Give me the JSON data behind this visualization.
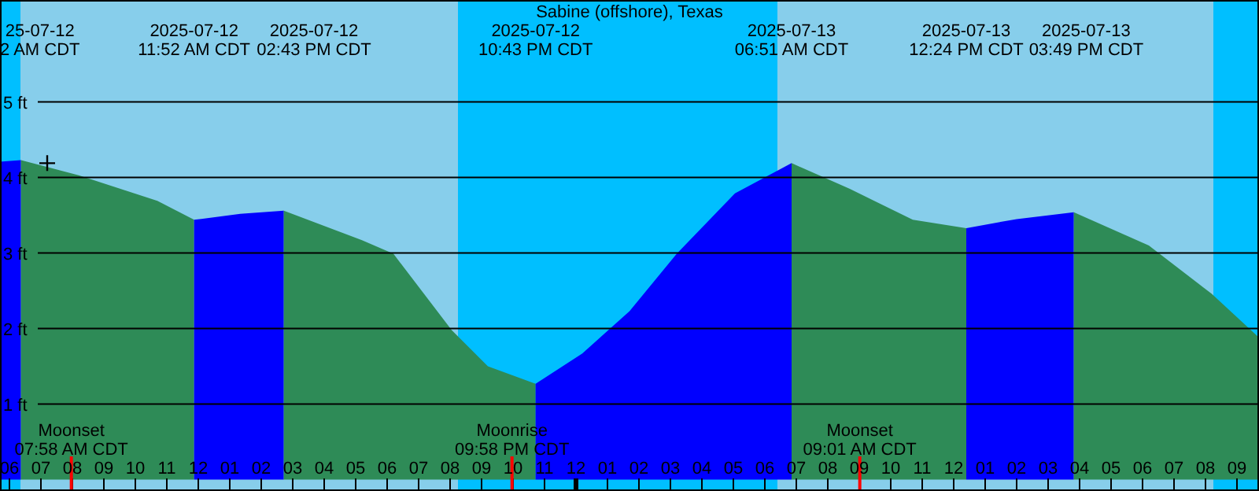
{
  "chart_data": {
    "type": "area",
    "title": "Sabine (offshore), Texas",
    "xlim": [
      "2025-07-12T05:42",
      "2025-07-13T21:42"
    ],
    "ylim": [
      -0.15,
      6.35
    ],
    "xticks": [
      {
        "value": "2025-07-12T06:00",
        "label": "06"
      },
      {
        "value": "2025-07-12T07:00",
        "label": "07"
      },
      {
        "value": "2025-07-12T08:00",
        "label": "08"
      },
      {
        "value": "2025-07-12T09:00",
        "label": "09"
      },
      {
        "value": "2025-07-12T10:00",
        "label": "10"
      },
      {
        "value": "2025-07-12T11:00",
        "label": "11"
      },
      {
        "value": "2025-07-12T12:00",
        "label": "12"
      },
      {
        "value": "2025-07-12T13:00",
        "label": "01"
      },
      {
        "value": "2025-07-12T14:00",
        "label": "02"
      },
      {
        "value": "2025-07-12T15:00",
        "label": "03"
      },
      {
        "value": "2025-07-12T16:00",
        "label": "04"
      },
      {
        "value": "2025-07-12T17:00",
        "label": "05"
      },
      {
        "value": "2025-07-12T18:00",
        "label": "06"
      },
      {
        "value": "2025-07-12T19:00",
        "label": "07"
      },
      {
        "value": "2025-07-12T20:00",
        "label": "08"
      },
      {
        "value": "2025-07-12T21:00",
        "label": "09"
      },
      {
        "value": "2025-07-12T22:00",
        "label": "10"
      },
      {
        "value": "2025-07-12T23:00",
        "label": "11"
      },
      {
        "value": "2025-07-13T00:00",
        "label": "12"
      },
      {
        "value": "2025-07-13T01:00",
        "label": "01"
      },
      {
        "value": "2025-07-13T02:00",
        "label": "02"
      },
      {
        "value": "2025-07-13T03:00",
        "label": "03"
      },
      {
        "value": "2025-07-13T04:00",
        "label": "04"
      },
      {
        "value": "2025-07-13T05:00",
        "label": "05"
      },
      {
        "value": "2025-07-13T06:00",
        "label": "06"
      },
      {
        "value": "2025-07-13T07:00",
        "label": "07"
      },
      {
        "value": "2025-07-13T08:00",
        "label": "08"
      },
      {
        "value": "2025-07-13T09:00",
        "label": "09"
      },
      {
        "value": "2025-07-13T10:00",
        "label": "10"
      },
      {
        "value": "2025-07-13T11:00",
        "label": "11"
      },
      {
        "value": "2025-07-13T12:00",
        "label": "12"
      },
      {
        "value": "2025-07-13T13:00",
        "label": "01"
      },
      {
        "value": "2025-07-13T14:00",
        "label": "02"
      },
      {
        "value": "2025-07-13T15:00",
        "label": "03"
      },
      {
        "value": "2025-07-13T16:00",
        "label": "04"
      },
      {
        "value": "2025-07-13T17:00",
        "label": "05"
      },
      {
        "value": "2025-07-13T18:00",
        "label": "06"
      },
      {
        "value": "2025-07-13T19:00",
        "label": "07"
      },
      {
        "value": "2025-07-13T20:00",
        "label": "08"
      },
      {
        "value": "2025-07-13T21:00",
        "label": "09"
      }
    ],
    "yticks": [
      {
        "value": 1,
        "label": "1 ft"
      },
      {
        "value": 2,
        "label": "2 ft"
      },
      {
        "value": 3,
        "label": "3 ft"
      },
      {
        "value": 4,
        "label": "4 ft"
      },
      {
        "value": 5,
        "label": "5 ft"
      }
    ],
    "grid": "y",
    "bands": [
      {
        "axis": "x",
        "from": "2025-07-12T05:42",
        "to": "2025-07-12T06:21",
        "color": "#00bfff"
      },
      {
        "axis": "x",
        "from": "2025-07-12T06:21",
        "to": "2025-07-12T20:15",
        "color": "#87ceeb"
      },
      {
        "axis": "x",
        "from": "2025-07-12T20:15",
        "to": "2025-07-13T06:24",
        "color": "#00bfff"
      },
      {
        "axis": "x",
        "from": "2025-07-13T06:24",
        "to": "2025-07-13T20:15",
        "color": "#87ceeb"
      },
      {
        "axis": "x",
        "from": "2025-07-13T20:15",
        "to": "2025-07-13T21:42",
        "color": "#00bfff"
      }
    ],
    "ref_lines": [
      {
        "axis": "x",
        "value": "2025-07-12T07:58",
        "label": "Moonset\n07:58 AM CDT",
        "color": "#ff0000"
      },
      {
        "axis": "x",
        "value": "2025-07-12T21:58",
        "label": "Moonrise\n09:58 PM CDT",
        "color": "#ff0000"
      },
      {
        "axis": "x",
        "value": "2025-07-13T09:01",
        "label": "Moonset\n09:01 AM CDT",
        "color": "#ff0000"
      }
    ],
    "series": [
      {
        "color": "#0000ff",
        "x": [
          "2025-07-12T05:42",
          "2025-07-12T06:22"
        ],
        "values": [
          4.21,
          4.23
        ]
      },
      {
        "color": "#2e8b57",
        "x": [
          "2025-07-12T06:22",
          "2025-07-12T08:12",
          "2025-07-12T10:42",
          "2025-07-12T11:52"
        ],
        "values": [
          4.23,
          4.03,
          3.69,
          3.44
        ]
      },
      {
        "color": "#0000ff",
        "x": [
          "2025-07-12T11:52",
          "2025-07-12T13:20",
          "2025-07-12T14:43"
        ],
        "values": [
          3.44,
          3.52,
          3.56
        ]
      },
      {
        "color": "#2e8b57",
        "x": [
          "2025-07-12T14:43",
          "2025-07-12T17:12",
          "2025-07-12T18:12",
          "2025-07-12T20:03",
          "2025-07-12T21:12",
          "2025-07-12T22:43"
        ],
        "values": [
          3.56,
          3.17,
          2.99,
          1.98,
          1.5,
          1.27
        ]
      },
      {
        "color": "#0000ff",
        "x": [
          "2025-07-12T22:43",
          "2025-07-13T00:12",
          "2025-07-13T01:42",
          "2025-07-13T03:12",
          "2025-07-13T05:03",
          "2025-07-13T06:51"
        ],
        "values": [
          1.27,
          1.67,
          2.23,
          2.99,
          3.79,
          4.19
        ]
      },
      {
        "color": "#2e8b57",
        "x": [
          "2025-07-13T06:51",
          "2025-07-13T08:42",
          "2025-07-13T10:42",
          "2025-07-13T12:24"
        ],
        "values": [
          4.19,
          3.85,
          3.44,
          3.33
        ]
      },
      {
        "color": "#0000ff",
        "x": [
          "2025-07-13T12:24",
          "2025-07-13T14:00",
          "2025-07-13T15:49"
        ],
        "values": [
          3.33,
          3.45,
          3.54
        ]
      },
      {
        "color": "#2e8b57",
        "x": [
          "2025-07-13T15:49",
          "2025-07-13T18:12",
          "2025-07-13T20:12",
          "2025-07-13T21:42"
        ],
        "values": [
          3.54,
          3.1,
          2.46,
          1.88
        ]
      },
      {
        "type": "scatter",
        "marker": "cross",
        "color": "#000000",
        "x": [
          "2025-07-12T07:12"
        ],
        "values": [
          4.19
        ]
      }
    ],
    "annotations": [
      "25-07-12\n2 AM CDT",
      "2025-07-12\n11:52 AM CDT",
      "2025-07-12\n02:43 PM CDT",
      "2025-07-12\n10:43 PM CDT",
      "2025-07-13\n06:51 AM CDT",
      "2025-07-13\n12:24 PM CDT",
      "2025-07-13\n03:49 PM CDT"
    ]
  }
}
